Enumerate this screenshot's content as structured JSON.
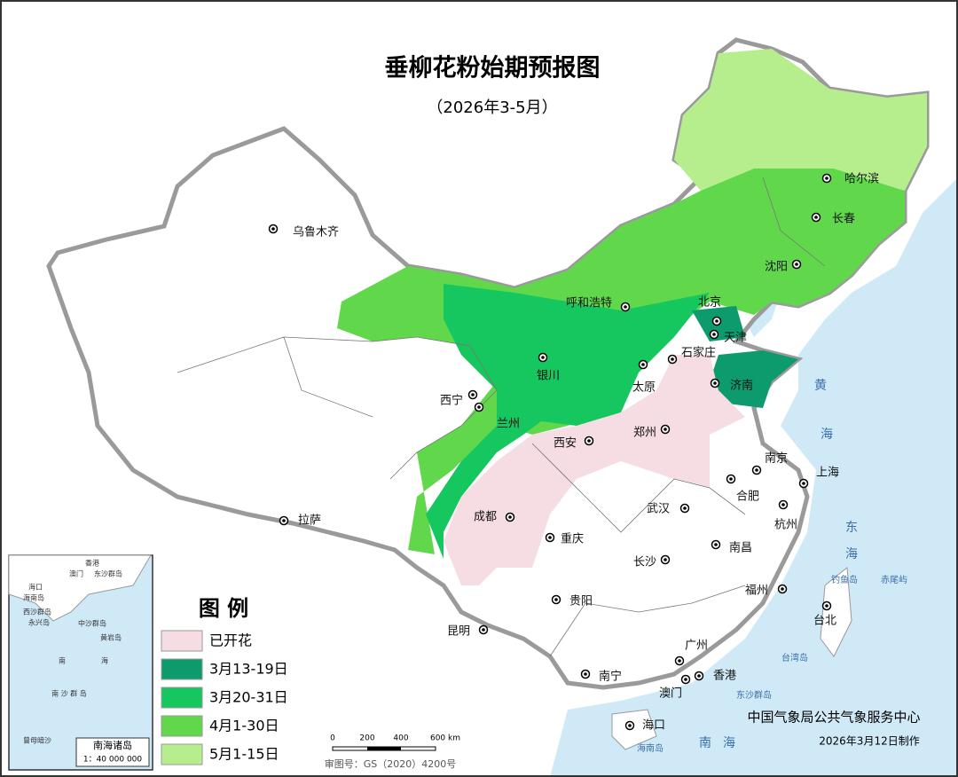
{
  "title": "垂柳花粉始期预报图",
  "subtitle": "（2026年3-5月）",
  "legend": {
    "title": "图 例",
    "items": [
      {
        "label": "已开花",
        "color": "#f6dde3"
      },
      {
        "label": "3月13-19日",
        "color": "#0d9a6c"
      },
      {
        "label": "3月20-31日",
        "color": "#16c75f"
      },
      {
        "label": "4月1-30日",
        "color": "#61d84c"
      },
      {
        "label": "5月1-15日",
        "color": "#b6ee8e"
      }
    ]
  },
  "cities": [
    "乌鲁木齐",
    "哈尔滨",
    "长春",
    "沈阳",
    "北京",
    "呼和浩特",
    "天津",
    "石家庄",
    "济南",
    "太原",
    "银川",
    "西宁",
    "兰州",
    "西安",
    "郑州",
    "南京",
    "上海",
    "合肥",
    "杭州",
    "武汉",
    "成都",
    "重庆",
    "长沙",
    "南昌",
    "福州",
    "贵阳",
    "台北",
    "昆明",
    "广州",
    "香港",
    "澳门",
    "南宁",
    "海口",
    "拉萨"
  ],
  "sea_labels": [
    "黄",
    "海",
    "东",
    "海",
    "钓鱼岛",
    "赤尾屿",
    "台湾岛",
    "东沙群岛",
    "海南岛",
    "南",
    "海"
  ],
  "scale_bar": [
    "0",
    "200",
    "400",
    "600 km"
  ],
  "approval": "审图号：GS（2020）4200号",
  "agency": "中国气象局公共气象服务中心",
  "date": "2026年3月12日制作",
  "inset": {
    "title": "南海诸岛",
    "scale": "1：40 000 000",
    "labels": [
      "香港",
      "澳门",
      "东沙群岛",
      "海口",
      "海南岛",
      "西沙群岛",
      "永兴岛",
      "中沙群岛",
      "黄岩岛",
      "南",
      "海",
      "南 沙 群 岛",
      "曾母暗沙"
    ]
  }
}
